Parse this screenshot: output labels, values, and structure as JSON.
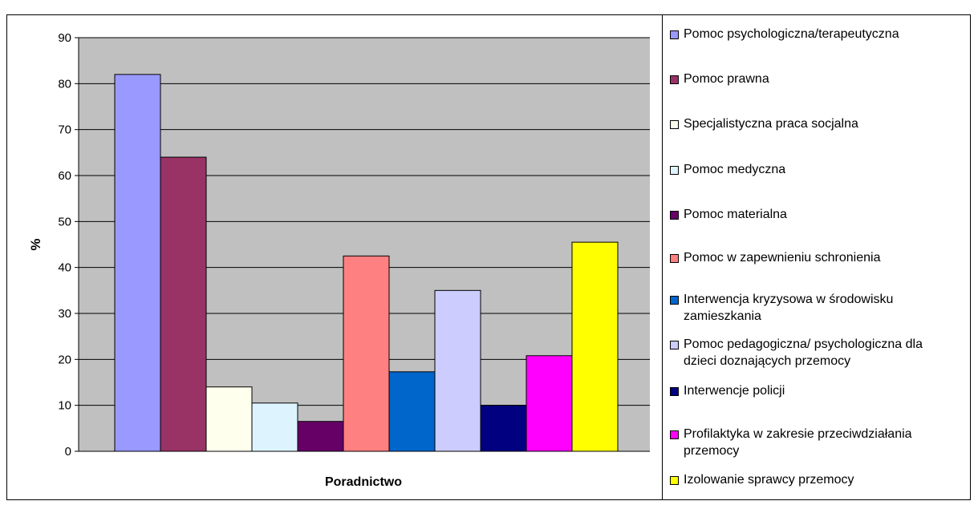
{
  "chart_data": {
    "type": "bar",
    "categories": [
      "Poradnictwo"
    ],
    "xlabel": "Poradnictwo",
    "ylabel": "%",
    "ylim": [
      0,
      90
    ],
    "yticks": [
      0,
      10,
      20,
      30,
      40,
      50,
      60,
      70,
      80,
      90
    ],
    "grid": true,
    "legend_position": "right",
    "plot_background": "#c0c0c0",
    "series": [
      {
        "name": "Pomoc psychologiczna/terapeutyczna",
        "color": "#9999ff",
        "values": [
          82
        ]
      },
      {
        "name": "Pomoc prawna",
        "color": "#993366",
        "values": [
          64
        ]
      },
      {
        "name": "Specjalistyczna praca socjalna",
        "color": "#ffffee",
        "values": [
          14
        ]
      },
      {
        "name": "Pomoc medyczna",
        "color": "#ddf4ff",
        "values": [
          10.5
        ]
      },
      {
        "name": "Pomoc materialna",
        "color": "#660066",
        "values": [
          6.5
        ]
      },
      {
        "name": "Pomoc w zapewnieniu schronienia",
        "color": "#ff8080",
        "values": [
          42.5
        ]
      },
      {
        "name": "Interwencja kryzysowa w środowisku zamieszkania",
        "color": "#0066cc",
        "values": [
          17.3
        ]
      },
      {
        "name": "Pomoc pedagogiczna/ psychologiczna dla dzieci doznających przemocy",
        "color": "#ccccff",
        "values": [
          35
        ]
      },
      {
        "name": "Interwencje policji",
        "color": "#000080",
        "values": [
          10
        ]
      },
      {
        "name": "Profilaktyka w zakresie przeciwdziałania przemocy",
        "color": "#ff00ff",
        "values": [
          20.8
        ]
      },
      {
        "name": "Izolowanie sprawcy przemocy",
        "color": "#ffff00",
        "values": [
          45.5
        ]
      }
    ]
  },
  "legend": {
    "items": [
      {
        "lines": [
          "Pomoc psychologiczna/terapeutyczna"
        ]
      },
      {
        "lines": [
          "Pomoc prawna"
        ]
      },
      {
        "lines": [
          "Specjalistyczna praca socjalna"
        ]
      },
      {
        "lines": [
          "Pomoc medyczna"
        ]
      },
      {
        "lines": [
          "Pomoc materialna"
        ]
      },
      {
        "lines": [
          "Pomoc w zapewnieniu schronienia"
        ]
      },
      {
        "lines": [
          "Interwencja kryzysowa w środowisku",
          "zamieszkania"
        ]
      },
      {
        "lines": [
          "Pomoc pedagogiczna/ psychologiczna dla",
          "dzieci doznających przemocy"
        ]
      },
      {
        "lines": [
          "Interwencje policji"
        ]
      },
      {
        "lines": [
          "Profilaktyka w zakresie przeciwdziałania",
          "przemocy"
        ]
      },
      {
        "lines": [
          "Izolowanie sprawcy przemocy"
        ]
      }
    ]
  }
}
